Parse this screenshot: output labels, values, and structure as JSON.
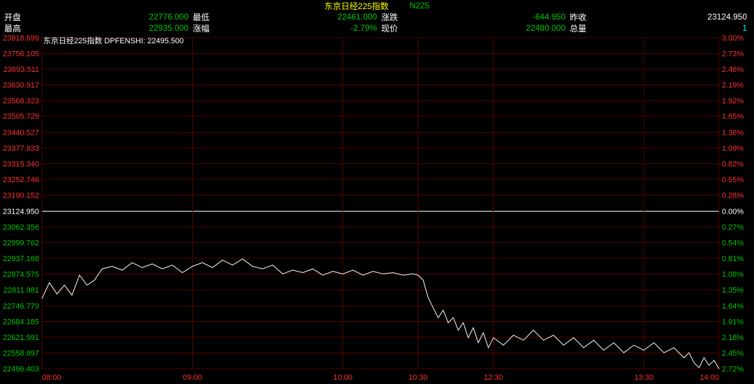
{
  "chart": {
    "type": "line",
    "title": "东京日经225指数",
    "symbol": "N225",
    "title_color": "#ffff00",
    "symbol_color": "#00c800",
    "background_color": "#000000",
    "grid_color": "#550000",
    "baseline_color": "#ffffff",
    "line_color": "#ffffff",
    "line_width": 1,
    "left_axis_label_pos_color": "#ff3030",
    "left_axis_label_base_color": "#ffffff",
    "left_axis_label_neg_color": "#00c800",
    "right_axis_label_pos_color": "#ff3030",
    "right_axis_label_base_color": "#ffffff",
    "right_axis_label_neg_color": "#00c800",
    "x_axis_label_color": "#ff3030",
    "tooltip_text": "东京日经225指数 DPFENSHI: 22495.500",
    "y_baseline": 23124.95,
    "y_min": 22496.403,
    "y_max": 23818.699,
    "y_ticks": [
      {
        "v": 23818.699,
        "pct": "3.00%"
      },
      {
        "v": 23756.105,
        "pct": "2.73%"
      },
      {
        "v": 23693.511,
        "pct": "2.46%"
      },
      {
        "v": 23630.917,
        "pct": "2.19%"
      },
      {
        "v": 23568.323,
        "pct": "1.92%"
      },
      {
        "v": 23505.729,
        "pct": "1.65%"
      },
      {
        "v": 23440.527,
        "pct": "1.36%"
      },
      {
        "v": 23377.933,
        "pct": "1.09%"
      },
      {
        "v": 23315.34,
        "pct": "0.82%"
      },
      {
        "v": 23252.746,
        "pct": "0.55%"
      },
      {
        "v": 23190.152,
        "pct": "0.28%"
      },
      {
        "v": 23124.95,
        "pct": "0.00%"
      },
      {
        "v": 23062.356,
        "pct": "0.27%"
      },
      {
        "v": 22999.762,
        "pct": "0.54%"
      },
      {
        "v": 22937.168,
        "pct": "0.81%"
      },
      {
        "v": 22874.575,
        "pct": "1.08%"
      },
      {
        "v": 22811.981,
        "pct": "1.35%"
      },
      {
        "v": 22746.779,
        "pct": "1.64%"
      },
      {
        "v": 22684.185,
        "pct": "1.91%"
      },
      {
        "v": 22621.591,
        "pct": "2.18%"
      },
      {
        "v": 22558.997,
        "pct": "2.45%"
      },
      {
        "v": 22496.403,
        "pct": "2.72%"
      }
    ],
    "x_ticks": [
      "08:00",
      "09:00",
      "10:00",
      "10:30",
      "12:30",
      "13:30",
      "14:00"
    ],
    "x_domain_minutes": [
      0,
      60,
      120,
      150,
      180,
      240,
      270
    ],
    "series": [
      [
        0,
        22776
      ],
      [
        3,
        22840
      ],
      [
        6,
        22795
      ],
      [
        9,
        22830
      ],
      [
        12,
        22790
      ],
      [
        15,
        22870
      ],
      [
        18,
        22830
      ],
      [
        21,
        22850
      ],
      [
        24,
        22895
      ],
      [
        28,
        22905
      ],
      [
        32,
        22890
      ],
      [
        36,
        22920
      ],
      [
        40,
        22900
      ],
      [
        44,
        22915
      ],
      [
        48,
        22895
      ],
      [
        52,
        22910
      ],
      [
        56,
        22880
      ],
      [
        60,
        22905
      ],
      [
        64,
        22920
      ],
      [
        68,
        22900
      ],
      [
        72,
        22930
      ],
      [
        76,
        22910
      ],
      [
        80,
        22935
      ],
      [
        84,
        22905
      ],
      [
        88,
        22895
      ],
      [
        92,
        22910
      ],
      [
        96,
        22875
      ],
      [
        100,
        22890
      ],
      [
        104,
        22880
      ],
      [
        108,
        22895
      ],
      [
        112,
        22870
      ],
      [
        116,
        22885
      ],
      [
        120,
        22875
      ],
      [
        124,
        22890
      ],
      [
        128,
        22870
      ],
      [
        132,
        22885
      ],
      [
        136,
        22875
      ],
      [
        140,
        22880
      ],
      [
        144,
        22870
      ],
      [
        148,
        22875
      ],
      [
        150,
        22870
      ],
      [
        152,
        22850
      ],
      [
        154,
        22780
      ],
      [
        156,
        22740
      ],
      [
        158,
        22700
      ],
      [
        160,
        22730
      ],
      [
        162,
        22680
      ],
      [
        164,
        22700
      ],
      [
        166,
        22650
      ],
      [
        168,
        22680
      ],
      [
        170,
        22620
      ],
      [
        172,
        22660
      ],
      [
        174,
        22600
      ],
      [
        176,
        22640
      ],
      [
        178,
        22580
      ],
      [
        180,
        22620
      ],
      [
        184,
        22590
      ],
      [
        188,
        22630
      ],
      [
        192,
        22610
      ],
      [
        196,
        22650
      ],
      [
        200,
        22610
      ],
      [
        204,
        22630
      ],
      [
        208,
        22590
      ],
      [
        212,
        22620
      ],
      [
        216,
        22580
      ],
      [
        220,
        22610
      ],
      [
        224,
        22570
      ],
      [
        228,
        22600
      ],
      [
        232,
        22560
      ],
      [
        236,
        22590
      ],
      [
        240,
        22570
      ],
      [
        244,
        22600
      ],
      [
        248,
        22560
      ],
      [
        252,
        22580
      ],
      [
        256,
        22540
      ],
      [
        258,
        22560
      ],
      [
        260,
        22520
      ],
      [
        262,
        22500
      ],
      [
        264,
        22540
      ],
      [
        266,
        22510
      ],
      [
        268,
        22530
      ],
      [
        270,
        22495
      ]
    ]
  },
  "stats": {
    "row1": [
      {
        "label": "开盘",
        "value": "22776.000",
        "cls": "green"
      },
      {
        "label": "最低",
        "value": "22461.000",
        "cls": "green"
      },
      {
        "label": "涨跌",
        "value": "-644.950",
        "cls": "green"
      },
      {
        "label": "昨收",
        "value": "23124.950",
        "cls": "white"
      }
    ],
    "row2": [
      {
        "label": "最高",
        "value": "22935.000",
        "cls": "green"
      },
      {
        "label": "涨幅",
        "value": "-2.79%",
        "cls": "green"
      },
      {
        "label": "现价",
        "value": "22480.000",
        "cls": "green"
      },
      {
        "label": "总量",
        "value": "1",
        "cls": "cyan"
      }
    ]
  }
}
